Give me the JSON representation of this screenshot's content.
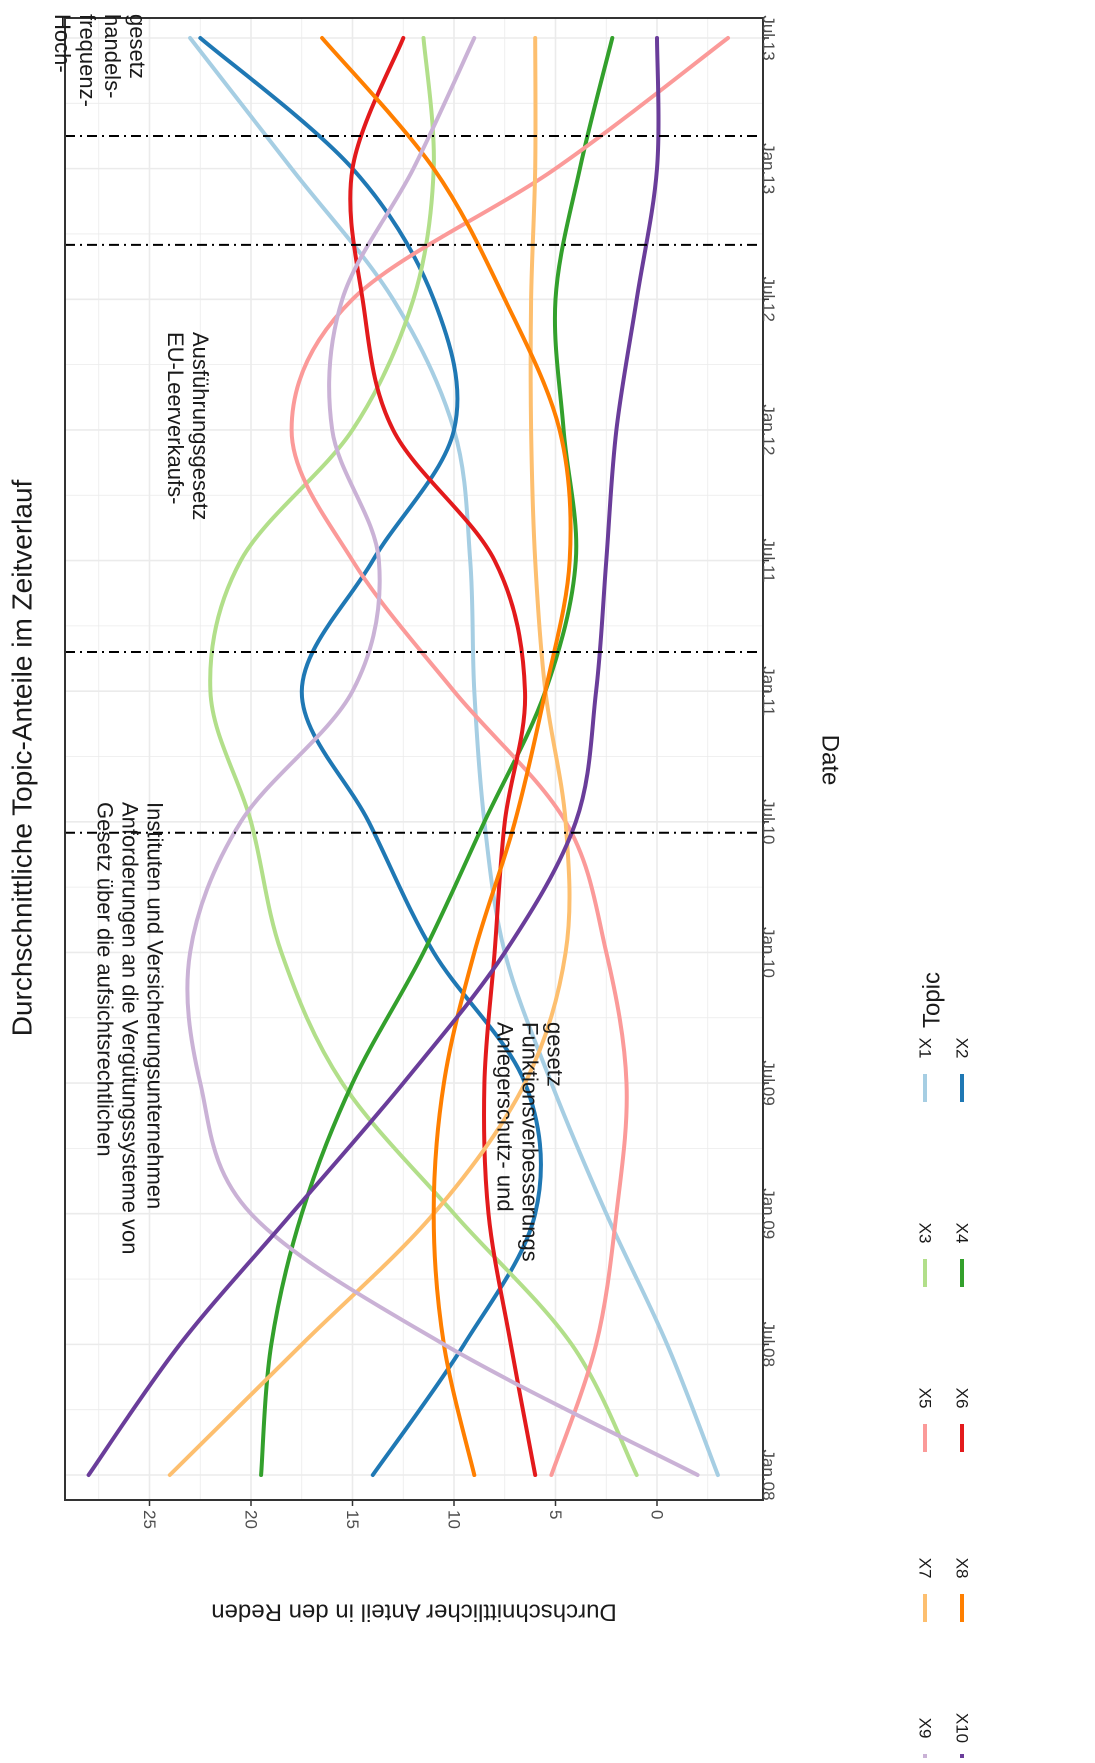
{
  "chart_data": {
    "type": "line",
    "title": "Durchschnittliche Topic-Anteile im Zeitverlauf",
    "xlabel": "Date",
    "ylabel": "Durchschnittlicher Anteil in den Reden",
    "x_ticks": [
      "Jan.08",
      "Jul.08",
      "Jan.09",
      "Jul.09",
      "Jan.10",
      "Jul.10",
      "Jan.11",
      "Jul.11",
      "Jan.12",
      "Jul.12",
      "Jan.13",
      "Jul.13"
    ],
    "y_ticks": [
      0,
      5,
      10,
      15,
      20,
      25
    ],
    "xlim": [
      0,
      66
    ],
    "ylim": [
      -3.5,
      29.5
    ],
    "grid": true,
    "legend": {
      "title": "Topic",
      "position": "bottom"
    },
    "x": [
      0,
      6,
      12,
      18,
      24,
      30,
      36,
      42,
      48,
      54,
      60,
      66
    ],
    "series": [
      {
        "name": "X1",
        "color": "#A6CEE3",
        "values": [
          -3,
          -0.5,
          2.5,
          5.2,
          7.5,
          8.5,
          9,
          9.2,
          10,
          13,
          18,
          23
        ]
      },
      {
        "name": "X2",
        "color": "#1F78B4",
        "values": [
          14,
          9.5,
          6,
          6.5,
          11,
          14.2,
          17.5,
          14,
          10,
          11,
          15,
          22.5
        ]
      },
      {
        "name": "X3",
        "color": "#B2DF8A",
        "values": [
          1,
          4.2,
          10,
          15.5,
          18.5,
          20,
          22,
          20.5,
          15,
          12,
          11,
          11.5
        ]
      },
      {
        "name": "X4",
        "color": "#33A02C",
        "values": [
          19.5,
          19,
          17.5,
          15,
          11.5,
          8.5,
          5.5,
          4,
          4.6,
          5,
          3.8,
          2.2
        ]
      },
      {
        "name": "X5",
        "color": "#FB9A99",
        "values": [
          5.2,
          3,
          2,
          1.5,
          2.5,
          4.5,
          10,
          15,
          18,
          15,
          5,
          -3.5
        ]
      },
      {
        "name": "X6",
        "color": "#E31A1C",
        "values": [
          6,
          7.2,
          8.3,
          8.5,
          8,
          7.5,
          6.5,
          8,
          13,
          14.5,
          15,
          12.5
        ]
      },
      {
        "name": "X7",
        "color": "#FDBF6F",
        "values": [
          24,
          17.5,
          11,
          6.5,
          4.5,
          4.5,
          5.5,
          6,
          6.2,
          6.2,
          6,
          6
        ]
      },
      {
        "name": "X8",
        "color": "#FF7F00",
        "values": [
          9,
          10.5,
          11,
          10.5,
          9,
          7,
          5.5,
          4.3,
          4.8,
          7.5,
          11,
          16.5
        ]
      },
      {
        "name": "X9",
        "color": "#CAB2D6",
        "values": [
          -2,
          10.5,
          20,
          22.5,
          23,
          20.5,
          15,
          13.7,
          16,
          15.5,
          12,
          9
        ]
      },
      {
        "name": "X10",
        "color": "#6A3D9A",
        "values": [
          28,
          23.5,
          18,
          12.5,
          7.5,
          4,
          3,
          2.5,
          2,
          1,
          0,
          0
        ]
      }
    ],
    "events": [
      {
        "x": 29.5,
        "label": [
          "Gesetz über die aufsichtsrechtlichen",
          "Anforderungen an die Vergütungssysteme von",
          "Instituten und Versicherungsunternehmen"
        ]
      },
      {
        "x": 37.8,
        "label": [
          "Anlegerschutz- und",
          "Funktionsverbesserungs",
          "gesetz"
        ]
      },
      {
        "x": 56.5,
        "label": [
          "EU-Leerverkaufs-",
          "Ausführungsgesetz"
        ]
      },
      {
        "x": 61.5,
        "label": [
          "Hoch-",
          "frequenz-",
          "handels-",
          "gesetz"
        ]
      }
    ]
  }
}
